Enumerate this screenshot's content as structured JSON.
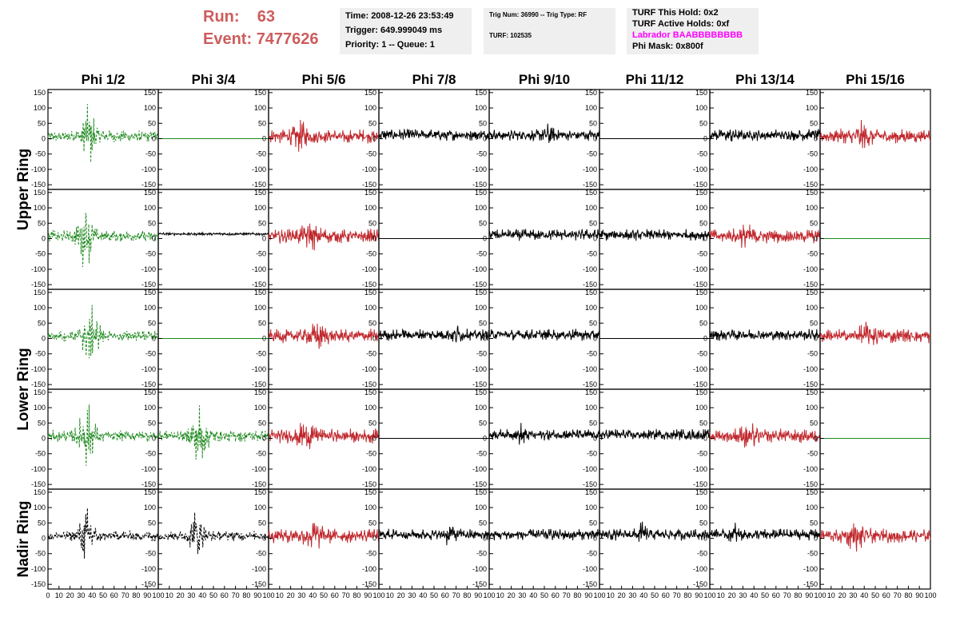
{
  "header": {
    "run_label": "Run:",
    "run_value": "63",
    "event_label": "Event:",
    "event_value": "7477626"
  },
  "info_box_1": {
    "time": "Time: 2008-12-26 23:53:49",
    "trigger": "Trigger: 649.999049 ms",
    "priority": "Priority: 1 -- Queue: 1"
  },
  "info_box_2": {
    "trig": "Trig Num: 36990 -- Trig Type: RF",
    "turf": "TURF: 102535"
  },
  "info_box_3": {
    "hold": "TURF This Hold: 0x2",
    "active": "TURF Active Holds: 0xf",
    "labrador": "Labrador BAABBBBBBBB",
    "phimask": "Phi Mask: 0x800f"
  },
  "colors": {
    "red_text": "#cd5c5c",
    "info_bg": "#efefef",
    "magenta": "#ff00ff",
    "waveform_green": "#1f8a1f",
    "waveform_red": "#c0282d",
    "waveform_black": "#000000"
  },
  "chart_data": {
    "type": "line",
    "columns": [
      "Phi 1/2",
      "Phi 3/4",
      "Phi 5/6",
      "Phi 7/8",
      "Phi 9/10",
      "Phi 11/12",
      "Phi 13/14",
      "Phi 15/16"
    ],
    "ring_labels": [
      "Upper Ring",
      "Lower Ring",
      "Nadir Ring"
    ],
    "rows": 5,
    "xlim": [
      0,
      100
    ],
    "ylim": [
      -160,
      160
    ],
    "y_ticks": [
      150,
      100,
      50,
      0,
      -50,
      -100,
      -150
    ],
    "x_ticks": [
      0,
      10,
      20,
      30,
      40,
      50,
      60,
      70,
      80,
      90,
      100
    ],
    "grid": false,
    "panels": [
      [
        "green-dashed",
        "flat-green",
        "red",
        "black",
        "black",
        "flat-black",
        "black",
        "red"
      ],
      [
        "green-dashed",
        "black-small",
        "red",
        "flat-black",
        "black",
        "black",
        "red",
        "flat-green"
      ],
      [
        "green-dashed",
        "flat-green",
        "red",
        "black",
        "black",
        "flat-black",
        "black",
        "red"
      ],
      [
        "green-dashed",
        "green-dashed",
        "red",
        "flat-black",
        "black",
        "black",
        "red",
        "flat-green"
      ],
      [
        "black-dashed",
        "black-dashed",
        "red",
        "black",
        "black",
        "black",
        "black",
        "red"
      ]
    ]
  }
}
